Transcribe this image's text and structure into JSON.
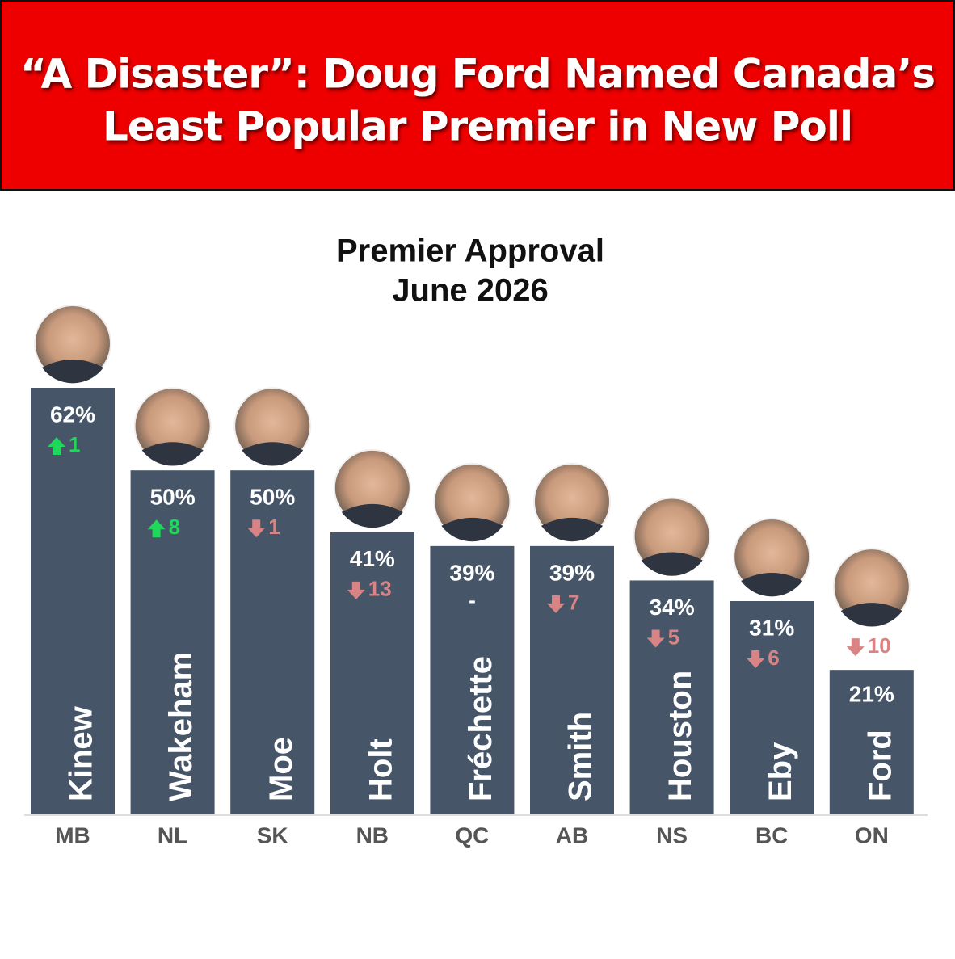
{
  "header": {
    "lines": [
      "“A Disaster”: Doug Ford Named Canada’s",
      "Least Popular Premier in New Poll"
    ]
  },
  "chart_data": {
    "type": "bar",
    "title": "Premier Approval",
    "subtitle": "June 2026",
    "categories": [
      "MB",
      "NL",
      "SK",
      "NB",
      "QC",
      "AB",
      "NS",
      "BC",
      "ON"
    ],
    "names": [
      "Kinew",
      "Wakeham",
      "Moe",
      "Holt",
      "Fréchette",
      "Smith",
      "Houston",
      "Eby",
      "Ford"
    ],
    "values": [
      62,
      50,
      50,
      41,
      39,
      39,
      34,
      31,
      21
    ],
    "value_labels": [
      "62%",
      "50%",
      "50%",
      "41%",
      "39%",
      "39%",
      "34%",
      "31%",
      "21%"
    ],
    "changes": [
      1,
      8,
      -1,
      -13,
      null,
      -7,
      -5,
      -6,
      -10
    ],
    "change_labels": [
      "1",
      "8",
      "1",
      "13",
      "-",
      "7",
      "5",
      "6",
      "10"
    ],
    "color": "#465568",
    "up_color": "#1fd85a",
    "down_color": "#d98484",
    "ylim": [
      0,
      62
    ]
  }
}
